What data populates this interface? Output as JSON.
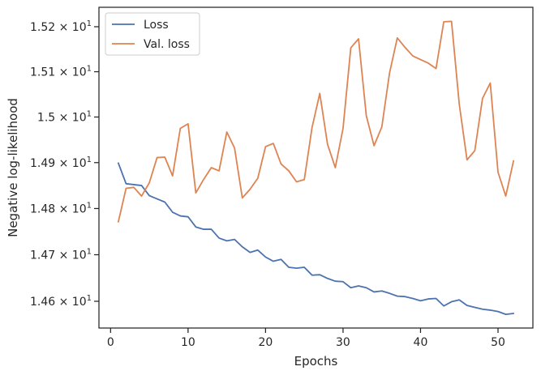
{
  "chart_data": {
    "type": "line",
    "xlabel": "Epochs",
    "ylabel": "Negative log-likelihood",
    "xlim": [
      -1.5,
      54.5
    ],
    "ylim": [
      14.5428,
      15.2434
    ],
    "y_scale": "log",
    "xticks": [
      0,
      10,
      20,
      30,
      40,
      50
    ],
    "yticks": [
      {
        "value": 14.6,
        "mantissa": "1.46",
        "base": "10",
        "exp": "1"
      },
      {
        "value": 14.7,
        "mantissa": "1.47",
        "base": "10",
        "exp": "1"
      },
      {
        "value": 14.8,
        "mantissa": "1.48",
        "base": "10",
        "exp": "1"
      },
      {
        "value": 14.9,
        "mantissa": "1.49",
        "base": "10",
        "exp": "1"
      },
      {
        "value": 15.0,
        "mantissa": "1.5",
        "base": "10",
        "exp": "1"
      },
      {
        "value": 15.1,
        "mantissa": "1.51",
        "base": "10",
        "exp": "1"
      },
      {
        "value": 15.2,
        "mantissa": "1.52",
        "base": "10",
        "exp": "1"
      }
    ],
    "times_sign": "×",
    "legend_position": "upper-left",
    "grid": false,
    "x": [
      1,
      2,
      3,
      4,
      5,
      6,
      7,
      8,
      9,
      10,
      11,
      12,
      13,
      14,
      15,
      16,
      17,
      18,
      19,
      20,
      21,
      22,
      23,
      24,
      25,
      26,
      27,
      28,
      29,
      30,
      31,
      32,
      33,
      34,
      35,
      36,
      37,
      38,
      39,
      40,
      41,
      42,
      43,
      44,
      45,
      46,
      47,
      48,
      49,
      50,
      51,
      52
    ],
    "series": [
      {
        "name": "Loss",
        "color": "#4c72b0",
        "values": [
          14.899,
          14.854,
          14.852,
          14.85,
          14.828,
          14.821,
          14.814,
          14.792,
          14.784,
          14.782,
          14.76,
          14.755,
          14.755,
          14.736,
          14.73,
          14.733,
          14.717,
          14.705,
          14.71,
          14.695,
          14.686,
          14.69,
          14.673,
          14.671,
          14.673,
          14.656,
          14.657,
          14.649,
          14.643,
          14.642,
          14.629,
          14.633,
          14.629,
          14.62,
          14.622,
          14.617,
          14.611,
          14.61,
          14.606,
          14.601,
          14.605,
          14.606,
          14.59,
          14.599,
          14.603,
          14.591,
          14.587,
          14.583,
          14.581,
          14.578,
          14.572,
          14.574
        ]
      },
      {
        "name": "Val. loss",
        "color": "#dd8452",
        "values": [
          14.771,
          14.844,
          14.846,
          14.827,
          14.856,
          14.911,
          14.912,
          14.871,
          14.975,
          14.985,
          14.834,
          14.863,
          14.889,
          14.882,
          14.967,
          14.932,
          14.823,
          14.842,
          14.866,
          14.935,
          14.942,
          14.897,
          14.882,
          14.858,
          14.863,
          14.977,
          15.052,
          14.94,
          14.889,
          14.975,
          15.153,
          15.173,
          15.003,
          14.937,
          14.978,
          15.097,
          15.175,
          15.154,
          15.135,
          15.127,
          15.119,
          15.107,
          15.211,
          15.212,
          15.028,
          14.906,
          14.926,
          15.041,
          15.075,
          14.879,
          14.827,
          14.904
        ]
      }
    ]
  }
}
